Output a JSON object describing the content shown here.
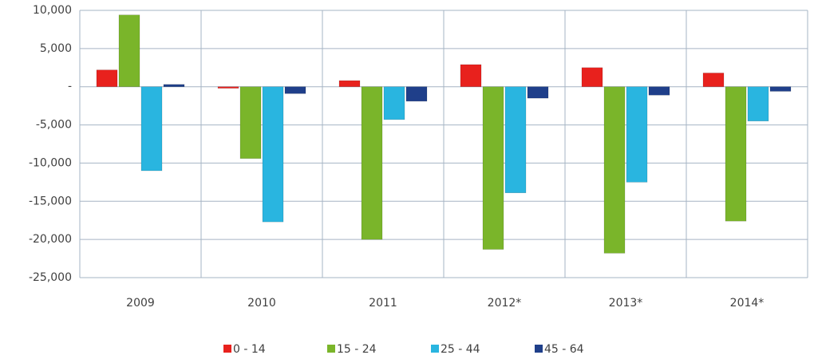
{
  "chart_data": {
    "type": "bar",
    "categories": [
      "2009",
      "2010",
      "2011",
      "2012*",
      "2013*",
      "2014*"
    ],
    "series": [
      {
        "name": "0 - 14",
        "color": "#e8211d",
        "values": [
          2200,
          -200,
          800,
          2900,
          2500,
          1800
        ]
      },
      {
        "name": "15 - 24",
        "color": "#7ab52a",
        "values": [
          9400,
          -9400,
          -20000,
          -21300,
          -21800,
          -17600
        ]
      },
      {
        "name": "25 - 44",
        "color": "#29b5e0",
        "values": [
          -11000,
          -17700,
          -4300,
          -13900,
          -12500,
          -4500
        ]
      },
      {
        "name": "45 - 64",
        "color": "#1f3f8a",
        "values": [
          300,
          -900,
          -1900,
          -1500,
          -1100,
          -600
        ]
      }
    ],
    "ylim": [
      -25000,
      10000
    ],
    "yticks": [
      {
        "value": -25000,
        "label": "-25,000"
      },
      {
        "value": -20000,
        "label": "-20,000"
      },
      {
        "value": -15000,
        "label": "-15,000"
      },
      {
        "value": -10000,
        "label": "-10,000"
      },
      {
        "value": -5000,
        "label": "-5,000"
      },
      {
        "value": 0,
        "label": "-"
      },
      {
        "value": 5000,
        "label": "5,000"
      },
      {
        "value": 10000,
        "label": "10,000"
      }
    ],
    "grid": true
  }
}
